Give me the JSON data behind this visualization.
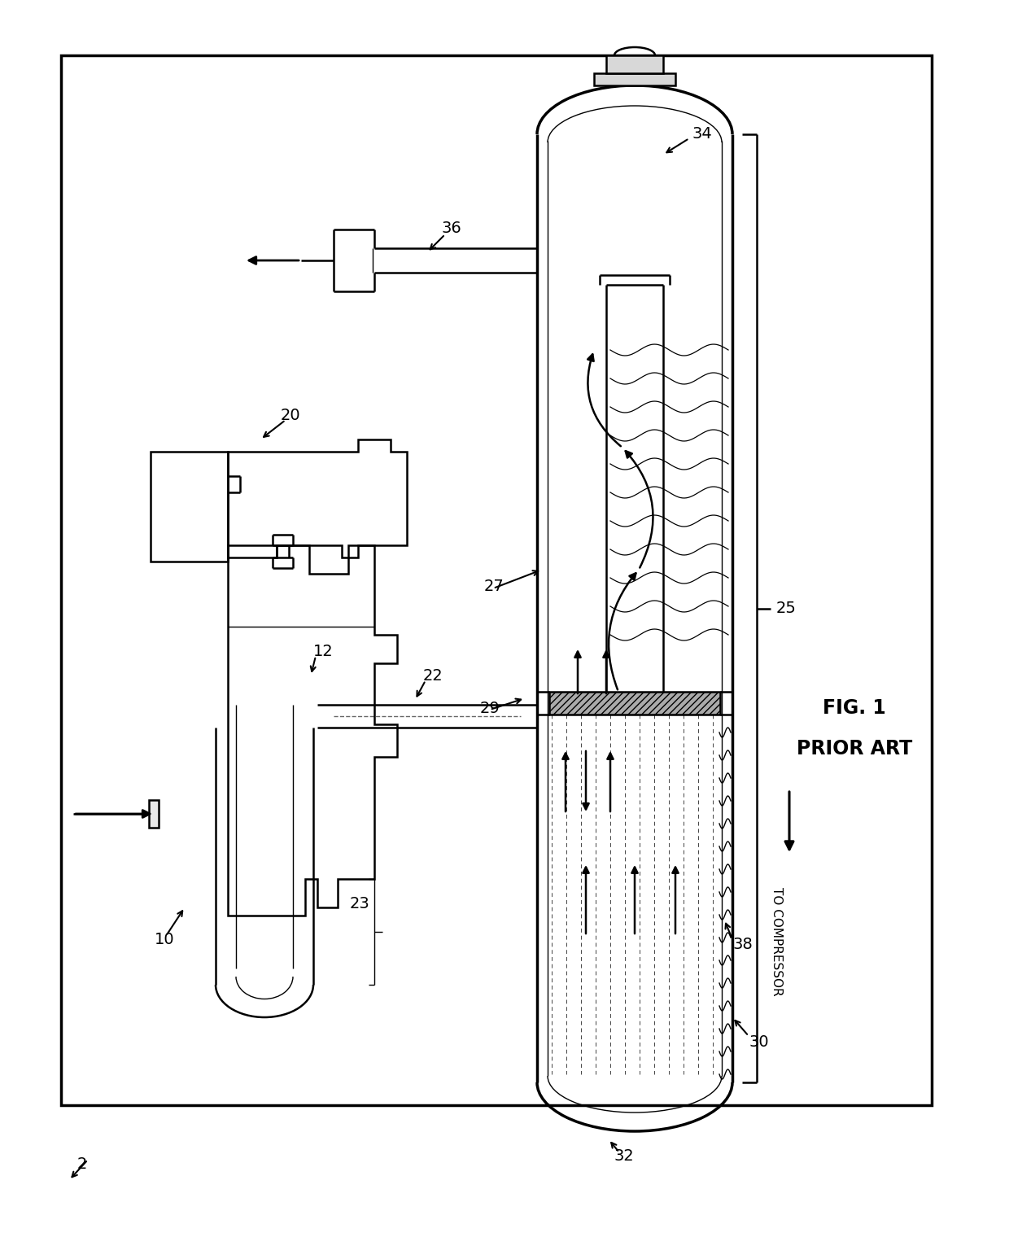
{
  "bg_color": "#ffffff",
  "line_color": "#000000",
  "labels": [
    "2",
    "10",
    "12",
    "20",
    "22",
    "23",
    "25",
    "27",
    "29",
    "30",
    "32",
    "34",
    "36",
    "38"
  ],
  "to_compressor": "TO COMPRESSOR",
  "fig1": "FIG. 1",
  "prior_art": "PRIOR ART"
}
